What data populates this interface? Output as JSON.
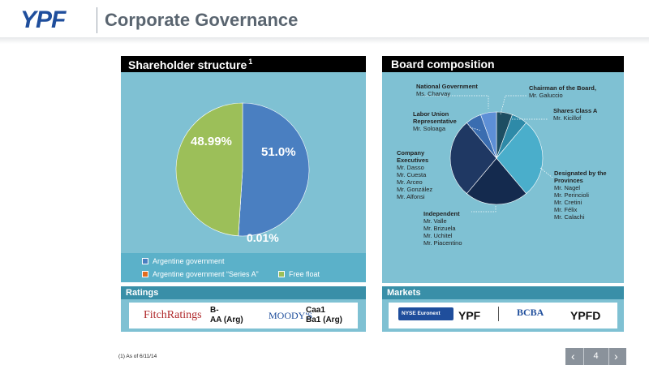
{
  "header": {
    "logo": "YPF",
    "title": "Corporate Governance"
  },
  "shareholder": {
    "title": "Shareholder structure",
    "footnote_mark": "1",
    "labels": {
      "argentine_gov": "51.0%",
      "series_a": "0.01%",
      "free_float": "48.99%"
    },
    "legend": [
      {
        "label": "Argentine government",
        "color": "#4a7fc1"
      },
      {
        "label": "Argentine government “Series A”",
        "color": "#e06c1f"
      },
      {
        "label": "Free float",
        "color": "#9cbf59"
      }
    ]
  },
  "board": {
    "title": "Board composition",
    "groups": [
      {
        "title": "National Government",
        "names": [
          "Ms. Charvay"
        ]
      },
      {
        "title": "Chairman of the Board,",
        "names": [
          "Mr. Galuccio"
        ]
      },
      {
        "title": "Labor Union Representative",
        "title_lines": [
          "Labor Union",
          "Representative"
        ],
        "names": [
          "Mr. Soloaga"
        ]
      },
      {
        "title": "Shares Class A",
        "names": [
          "Mr. Kicillof"
        ]
      },
      {
        "title": "Company Executives",
        "title_lines": [
          "Company",
          "Executives"
        ],
        "names": [
          "Mr. Dasso",
          "Mr. Cuesta",
          "Mr. Arceo",
          "Mr. González",
          "Mr. Alfonsi"
        ]
      },
      {
        "title": "Designated by the Provinces",
        "title_lines": [
          "Designated by the",
          "Provinces"
        ],
        "names": [
          "Mr. Nagel",
          "Mr. Perincioli",
          "Mr. Cretini",
          "Mr. Félix",
          "Mr. Calachi"
        ]
      },
      {
        "title": "Independent",
        "names": [
          "Mr. Valle",
          "Mr. Brizuela",
          "Mr. Uchitel",
          "Mr. Piacentino"
        ]
      }
    ]
  },
  "ratings": {
    "title": "Ratings",
    "fitch_logo": "FitchRatings",
    "fitch_values": [
      "B-",
      "AA (Arg)"
    ],
    "moodys_logo": "MOODY'S",
    "moodys_values": [
      "Caa1",
      "Ba1 (Arg)"
    ]
  },
  "markets": {
    "title": "Markets",
    "nyse_logo": "NYSE Euronext",
    "nyse_ticker": "YPF",
    "bcba_logo": "BCBA",
    "bcba_ticker": "YPFD"
  },
  "footer": {
    "footnote": "(1) As of 6/11/14",
    "page": "4"
  },
  "chart_data": [
    {
      "type": "pie",
      "categories": [
        "Argentine government",
        "Argentine government “Series A”",
        "Free float"
      ],
      "values": [
        51.0,
        0.01,
        48.99
      ],
      "labels": [
        "51.0%",
        "0.01%",
        "48.99%"
      ],
      "colors": [
        "#4a7fc1",
        "#e06c1f",
        "#9cbf59"
      ],
      "legend_position": "bottom"
    },
    {
      "type": "pie",
      "categories": [
        "Chairman of the Board",
        "Shares Class A",
        "Designated by the Provinces",
        "Independent",
        "Company Executives",
        "Labor Union Representative",
        "National Government"
      ],
      "values": [
        1,
        1,
        5,
        4,
        5,
        1,
        1
      ],
      "colors": [
        "#1d4e62",
        "#2e8aa8",
        "#4aaecb",
        "#142a4e",
        "#1f3863",
        "#3a6db0",
        "#5d8fd6"
      ]
    }
  ]
}
